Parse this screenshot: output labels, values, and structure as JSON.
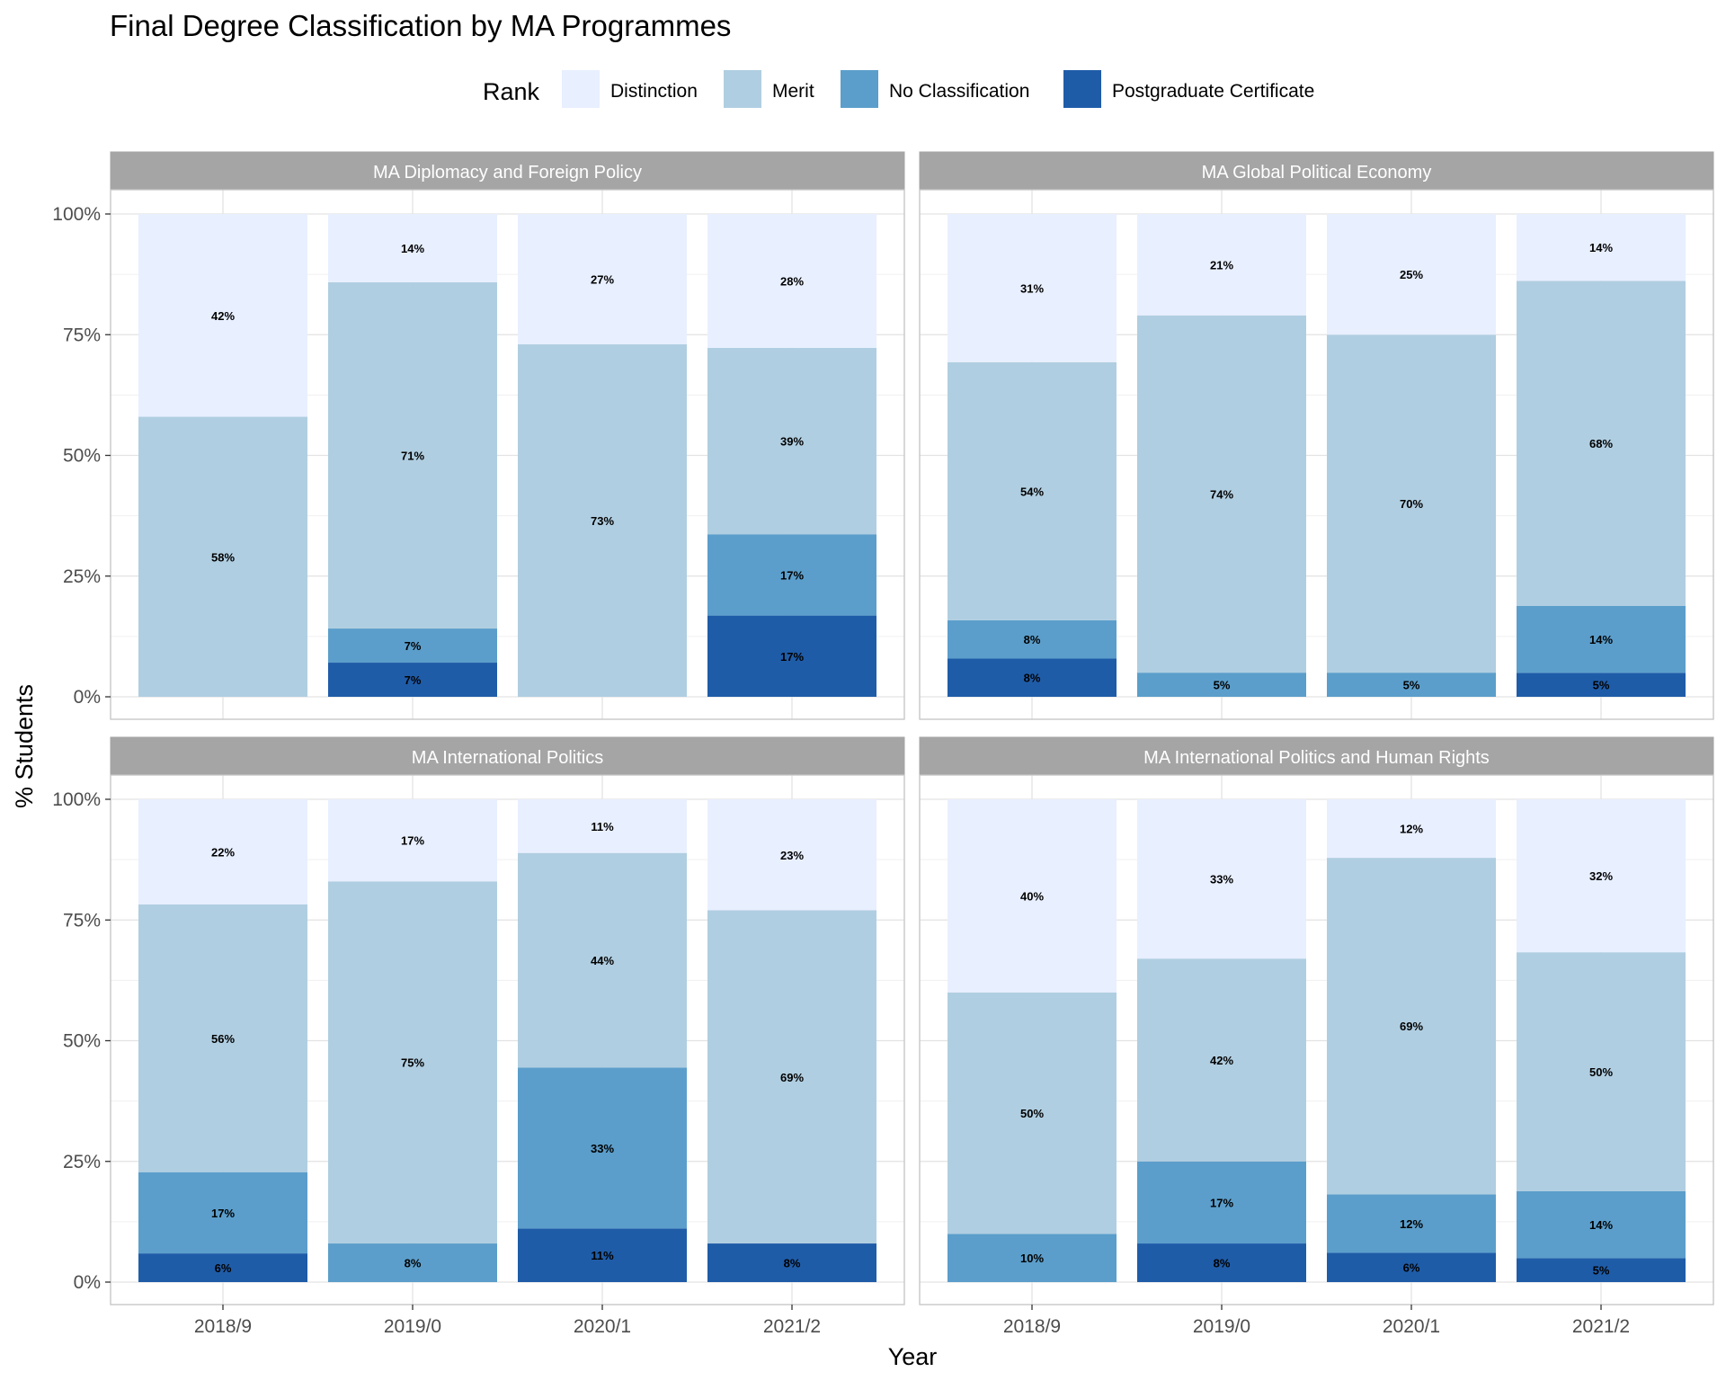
{
  "chart_data": {
    "type": "bar",
    "stacked": true,
    "title": "Final Degree Classification by MA Programmes",
    "xlabel": "Year",
    "ylabel": "% Students",
    "legend": {
      "title": "Rank",
      "placement": "top",
      "entries": [
        "Distinction",
        "Merit",
        "No Classification",
        "Postgraduate Certificate"
      ]
    },
    "colors": {
      "Distinction": "#e8efff",
      "Merit": "#b0cee1",
      "No Classification": "#5b9ecb",
      "Postgraduate Certificate": "#1f5ca8",
      "strip": "#a5a5a5",
      "strip_text": "#ffffff",
      "grid": "#e3e3e3",
      "panel_border": "#c4c4c4",
      "axis_text": "#4d4d4d"
    },
    "categories": [
      "2018/9",
      "2019/0",
      "2020/1",
      "2021/2"
    ],
    "ylim": [
      0,
      100
    ],
    "yticks": [
      0,
      25,
      50,
      75,
      100
    ],
    "ytick_labels": [
      "0%",
      "25%",
      "50%",
      "75%",
      "100%"
    ],
    "grid": true,
    "facets": [
      {
        "name": "MA Diplomacy and Foreign Policy",
        "stacks": [
          [
            {
              "rank": "Distinction",
              "value": 42,
              "label": "42%"
            },
            {
              "rank": "Merit",
              "value": 58,
              "label": "58%"
            }
          ],
          [
            {
              "rank": "Distinction",
              "value": 14,
              "label": "14%"
            },
            {
              "rank": "Merit",
              "value": 71,
              "label": "71%"
            },
            {
              "rank": "No Classification",
              "value": 7,
              "label": "7%"
            },
            {
              "rank": "Postgraduate Certificate",
              "value": 7,
              "label": "7%"
            }
          ],
          [
            {
              "rank": "Distinction",
              "value": 27,
              "label": "27%"
            },
            {
              "rank": "Merit",
              "value": 73,
              "label": "73%"
            }
          ],
          [
            {
              "rank": "Distinction",
              "value": 28,
              "label": "28%"
            },
            {
              "rank": "Merit",
              "value": 39,
              "label": "39%"
            },
            {
              "rank": "No Classification",
              "value": 17,
              "label": "17%"
            },
            {
              "rank": "Postgraduate Certificate",
              "value": 17,
              "label": "17%"
            }
          ]
        ]
      },
      {
        "name": "MA Global Political Economy",
        "stacks": [
          [
            {
              "rank": "Distinction",
              "value": 31,
              "label": "31%"
            },
            {
              "rank": "Merit",
              "value": 54,
              "label": "54%"
            },
            {
              "rank": "No Classification",
              "value": 8,
              "label": "8%"
            },
            {
              "rank": "Postgraduate Certificate",
              "value": 8,
              "label": "8%"
            }
          ],
          [
            {
              "rank": "Distinction",
              "value": 21,
              "label": "21%"
            },
            {
              "rank": "Merit",
              "value": 74,
              "label": "74%"
            },
            {
              "rank": "No Classification",
              "value": 5,
              "label": "5%"
            }
          ],
          [
            {
              "rank": "Distinction",
              "value": 25,
              "label": "25%"
            },
            {
              "rank": "Merit",
              "value": 70,
              "label": "70%"
            },
            {
              "rank": "No Classification",
              "value": 5,
              "label": "5%"
            }
          ],
          [
            {
              "rank": "Distinction",
              "value": 14,
              "label": "14%"
            },
            {
              "rank": "Merit",
              "value": 68,
              "label": "68%"
            },
            {
              "rank": "No Classification",
              "value": 14,
              "label": "14%"
            },
            {
              "rank": "Postgraduate Certificate",
              "value": 5,
              "label": "5%"
            }
          ]
        ]
      },
      {
        "name": "MA International Politics",
        "stacks": [
          [
            {
              "rank": "Distinction",
              "value": 22,
              "label": "22%"
            },
            {
              "rank": "Merit",
              "value": 56,
              "label": "56%"
            },
            {
              "rank": "No Classification",
              "value": 17,
              "label": "17%"
            },
            {
              "rank": "Postgraduate Certificate",
              "value": 6,
              "label": "6%"
            }
          ],
          [
            {
              "rank": "Distinction",
              "value": 17,
              "label": "17%"
            },
            {
              "rank": "Merit",
              "value": 75,
              "label": "75%"
            },
            {
              "rank": "No Classification",
              "value": 8,
              "label": "8%"
            }
          ],
          [
            {
              "rank": "Distinction",
              "value": 11,
              "label": "11%"
            },
            {
              "rank": "Merit",
              "value": 44,
              "label": "44%"
            },
            {
              "rank": "No Classification",
              "value": 33,
              "label": "33%"
            },
            {
              "rank": "Postgraduate Certificate",
              "value": 11,
              "label": "11%"
            }
          ],
          [
            {
              "rank": "Distinction",
              "value": 23,
              "label": "23%"
            },
            {
              "rank": "Merit",
              "value": 69,
              "label": "69%"
            },
            {
              "rank": "Postgraduate Certificate",
              "value": 8,
              "label": "8%"
            }
          ]
        ]
      },
      {
        "name": "MA International Politics and Human Rights",
        "stacks": [
          [
            {
              "rank": "Distinction",
              "value": 40,
              "label": "40%"
            },
            {
              "rank": "Merit",
              "value": 50,
              "label": "50%"
            },
            {
              "rank": "No Classification",
              "value": 10,
              "label": "10%"
            }
          ],
          [
            {
              "rank": "Distinction",
              "value": 33,
              "label": "33%"
            },
            {
              "rank": "Merit",
              "value": 42,
              "label": "42%"
            },
            {
              "rank": "No Classification",
              "value": 17,
              "label": "17%"
            },
            {
              "rank": "Postgraduate Certificate",
              "value": 8,
              "label": "8%"
            }
          ],
          [
            {
              "rank": "Distinction",
              "value": 12,
              "label": "12%"
            },
            {
              "rank": "Merit",
              "value": 69,
              "label": "69%"
            },
            {
              "rank": "No Classification",
              "value": 12,
              "label": "12%"
            },
            {
              "rank": "Postgraduate Certificate",
              "value": 6,
              "label": "6%"
            }
          ],
          [
            {
              "rank": "Distinction",
              "value": 32,
              "label": "32%"
            },
            {
              "rank": "Merit",
              "value": 50,
              "label": "50%"
            },
            {
              "rank": "No Classification",
              "value": 14,
              "label": "14%"
            },
            {
              "rank": "Postgraduate Certificate",
              "value": 5,
              "label": "5%"
            }
          ]
        ]
      }
    ]
  }
}
